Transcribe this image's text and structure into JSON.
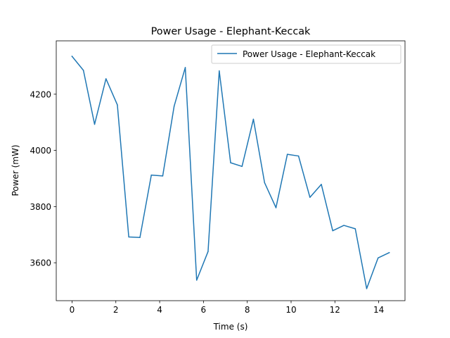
{
  "chart_data": {
    "type": "line",
    "title": "Power Usage - Elephant-Keccak",
    "xlabel": "Time (s)",
    "ylabel": "Power (mW)",
    "xlim": [
      -0.72,
      15.2
    ],
    "ylim": [
      3465,
      4390
    ],
    "xticks": [
      0,
      2,
      4,
      6,
      8,
      10,
      12,
      14
    ],
    "yticks": [
      3600,
      3800,
      4000,
      4200
    ],
    "grid": false,
    "legend": {
      "placement": "upper right"
    },
    "series": [
      {
        "name": "Power Usage - Elephant-Keccak",
        "color": "#1f77b4",
        "x": [
          0,
          0.52,
          1.03,
          1.55,
          2.07,
          2.59,
          3.1,
          3.62,
          4.14,
          4.66,
          5.17,
          5.69,
          6.21,
          6.72,
          7.24,
          7.76,
          8.28,
          8.79,
          9.31,
          9.83,
          10.34,
          10.86,
          11.38,
          11.9,
          12.41,
          12.93,
          13.45,
          13.97,
          14.48
        ],
        "y": [
          4335,
          4285,
          4093,
          4255,
          4162,
          3692,
          3690,
          3912,
          3909,
          4157,
          4295,
          3538,
          3640,
          4283,
          3956,
          3943,
          4111,
          3885,
          3796,
          3986,
          3980,
          3833,
          3879,
          3714,
          3733,
          3721,
          3508,
          3617,
          3636
        ]
      }
    ]
  }
}
